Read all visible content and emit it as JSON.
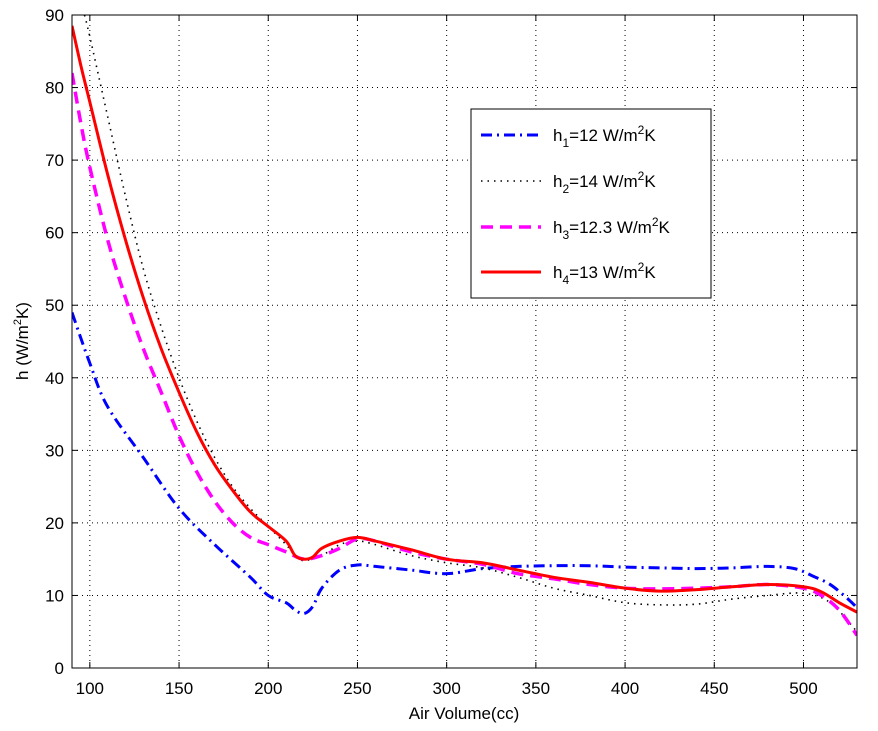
{
  "chart_data": {
    "type": "line",
    "xlabel": "Air Volume(cc)",
    "ylabel": {
      "main": "h (W/m",
      "sup": "2",
      "tail": "K)"
    },
    "xlim": [
      90,
      530
    ],
    "ylim": [
      0,
      90
    ],
    "x_ticks": [
      100,
      150,
      200,
      250,
      300,
      350,
      400,
      450,
      500
    ],
    "y_ticks": [
      0,
      10,
      20,
      30,
      40,
      50,
      60,
      70,
      80,
      90
    ],
    "grid": true,
    "legend_position": "upper-right",
    "series": [
      {
        "id": "h1",
        "legend": {
          "h": "h",
          "sub": "1",
          "mid": "=12 W/m",
          "sup": "2",
          "tail": "K"
        },
        "color": "#0000ff",
        "style": "dashdot",
        "x": [
          90,
          100,
          110,
          130,
          150,
          170,
          190,
          200,
          210,
          215,
          220,
          225,
          230,
          240,
          250,
          260,
          280,
          300,
          320,
          340,
          360,
          380,
          400,
          420,
          440,
          460,
          480,
          495,
          505,
          515,
          525,
          530
        ],
        "y": [
          49,
          42,
          36,
          29,
          22,
          17,
          12.5,
          10,
          9,
          8,
          7.5,
          8.5,
          11,
          13.5,
          14.2,
          14,
          13.5,
          13,
          13.7,
          14,
          14.1,
          14.1,
          13.9,
          13.8,
          13.7,
          13.8,
          14,
          13.7,
          12.7,
          11.5,
          9.5,
          8.3
        ]
      },
      {
        "id": "h2",
        "legend": {
          "h": "h",
          "sub": "2",
          "mid": "=14 W/m",
          "sup": "2",
          "tail": "K"
        },
        "color": "#000000",
        "style": "dotted",
        "x": [
          97,
          100,
          110,
          120,
          130,
          140,
          150,
          160,
          170,
          180,
          190,
          200,
          210,
          215,
          220,
          230,
          240,
          250,
          260,
          280,
          300,
          320,
          340,
          360,
          380,
          400,
          420,
          440,
          460,
          480,
          500,
          515,
          530
        ],
        "y": [
          90,
          87,
          76,
          65,
          55,
          47,
          40,
          34,
          29,
          25,
          22,
          19.5,
          17,
          15.5,
          14.8,
          15.5,
          17,
          17.5,
          17,
          15.5,
          14.5,
          13.8,
          12.5,
          11,
          10,
          9,
          8.7,
          8.8,
          9.5,
          10,
          10.3,
          9,
          5
        ]
      },
      {
        "id": "h3",
        "legend": {
          "h": "h",
          "sub": "3",
          "mid": "=12.3 W/m",
          "sup": "2",
          "tail": "K"
        },
        "color": "#ff00ff",
        "style": "dashed",
        "x": [
          90,
          95,
          100,
          110,
          120,
          130,
          140,
          150,
          160,
          170,
          180,
          190,
          200,
          210,
          220,
          230,
          240,
          250,
          260,
          280,
          300,
          320,
          340,
          360,
          380,
          400,
          420,
          440,
          460,
          480,
          500,
          510,
          520,
          530
        ],
        "y": [
          82,
          75,
          69,
          59,
          51,
          44,
          38,
          32,
          27,
          23,
          20,
          18,
          17,
          16,
          15,
          15.5,
          16.5,
          17.8,
          17.5,
          16,
          15,
          14.3,
          13,
          12.3,
          11.5,
          11,
          10.9,
          11,
          11.2,
          11.5,
          11,
          10,
          8,
          4.5
        ]
      },
      {
        "id": "h4",
        "legend": {
          "h": "h",
          "sub": "4",
          "mid": "=13 W/m",
          "sup": "2",
          "tail": "K"
        },
        "color": "#ff0000",
        "style": "solid",
        "x": [
          90,
          95,
          100,
          110,
          120,
          130,
          140,
          150,
          160,
          170,
          180,
          190,
          200,
          210,
          215,
          220,
          225,
          230,
          240,
          250,
          260,
          280,
          300,
          320,
          340,
          360,
          380,
          400,
          420,
          440,
          460,
          480,
          500,
          510,
          520,
          530
        ],
        "y": [
          88.5,
          83,
          78,
          68,
          59,
          51,
          44,
          38,
          32.5,
          28,
          24.5,
          21.5,
          19.5,
          17.5,
          15.5,
          15,
          15.3,
          16.5,
          17.5,
          18,
          17.5,
          16.3,
          15,
          14.5,
          13.5,
          12.5,
          11.8,
          11,
          10.6,
          10.8,
          11.2,
          11.5,
          11.2,
          10.5,
          9,
          7.7
        ]
      }
    ]
  }
}
